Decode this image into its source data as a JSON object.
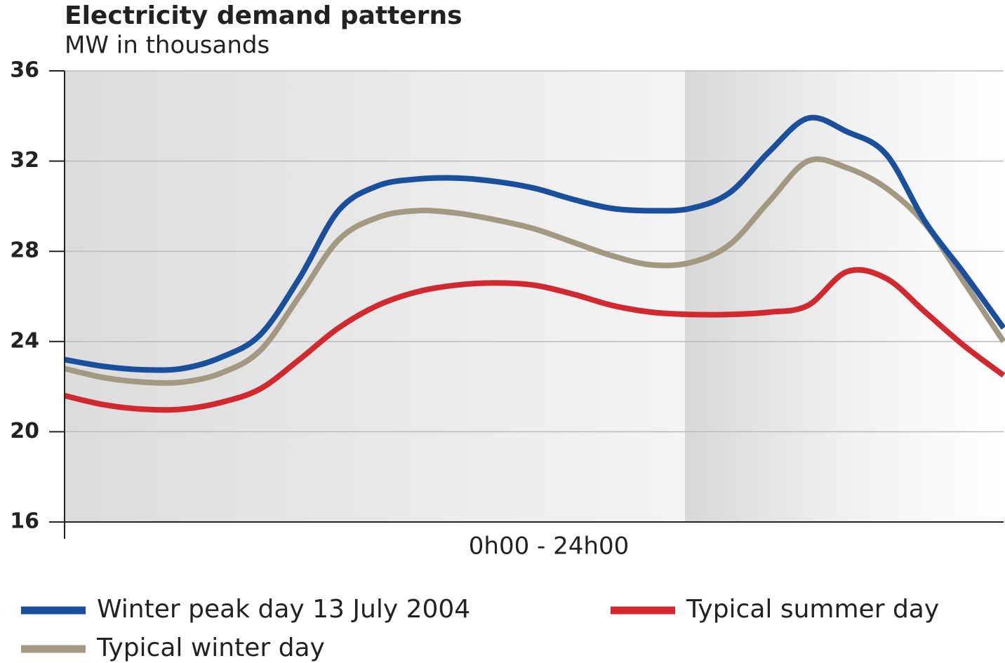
{
  "chart_data": {
    "type": "line",
    "title": "Electricity demand patterns",
    "subtitle": "MW in thousands",
    "x_label": "0h00 - 24h00",
    "x": [
      0,
      1,
      2,
      3,
      4,
      5,
      6,
      7,
      8,
      9,
      10,
      11,
      12,
      13,
      14,
      15,
      16,
      17,
      18,
      19,
      20,
      21,
      22,
      23,
      24
    ],
    "xlim": [
      0,
      24
    ],
    "ylim": [
      16,
      36
    ],
    "yticks": [
      16,
      20,
      24,
      28,
      32,
      36
    ],
    "grid": true,
    "legend": "bottom",
    "series": [
      {
        "name": "Winter peak day 13 July 2004",
        "color": "#1a4f9c",
        "values": [
          23.2,
          22.9,
          22.75,
          22.8,
          23.3,
          24.3,
          26.8,
          29.8,
          30.9,
          31.2,
          31.25,
          31.1,
          30.8,
          30.3,
          29.9,
          29.8,
          29.9,
          30.6,
          32.4,
          33.9,
          33.3,
          32.3,
          29.3,
          27.0,
          24.6
        ]
      },
      {
        "name": "Typical summer day",
        "color": "#d02a30",
        "values": [
          21.6,
          21.2,
          21.0,
          21.0,
          21.3,
          21.9,
          23.2,
          24.6,
          25.6,
          26.2,
          26.5,
          26.6,
          26.5,
          26.1,
          25.6,
          25.3,
          25.2,
          25.2,
          25.3,
          25.6,
          27.1,
          26.8,
          25.3,
          23.8,
          22.5
        ]
      },
      {
        "name": "Typical winter day",
        "color": "#a39882",
        "values": [
          22.8,
          22.4,
          22.2,
          22.2,
          22.6,
          23.6,
          26.0,
          28.5,
          29.5,
          29.8,
          29.7,
          29.4,
          29.0,
          28.4,
          27.8,
          27.4,
          27.5,
          28.3,
          30.2,
          32.0,
          31.7,
          30.8,
          29.2,
          26.6,
          24.0
        ]
      }
    ]
  }
}
